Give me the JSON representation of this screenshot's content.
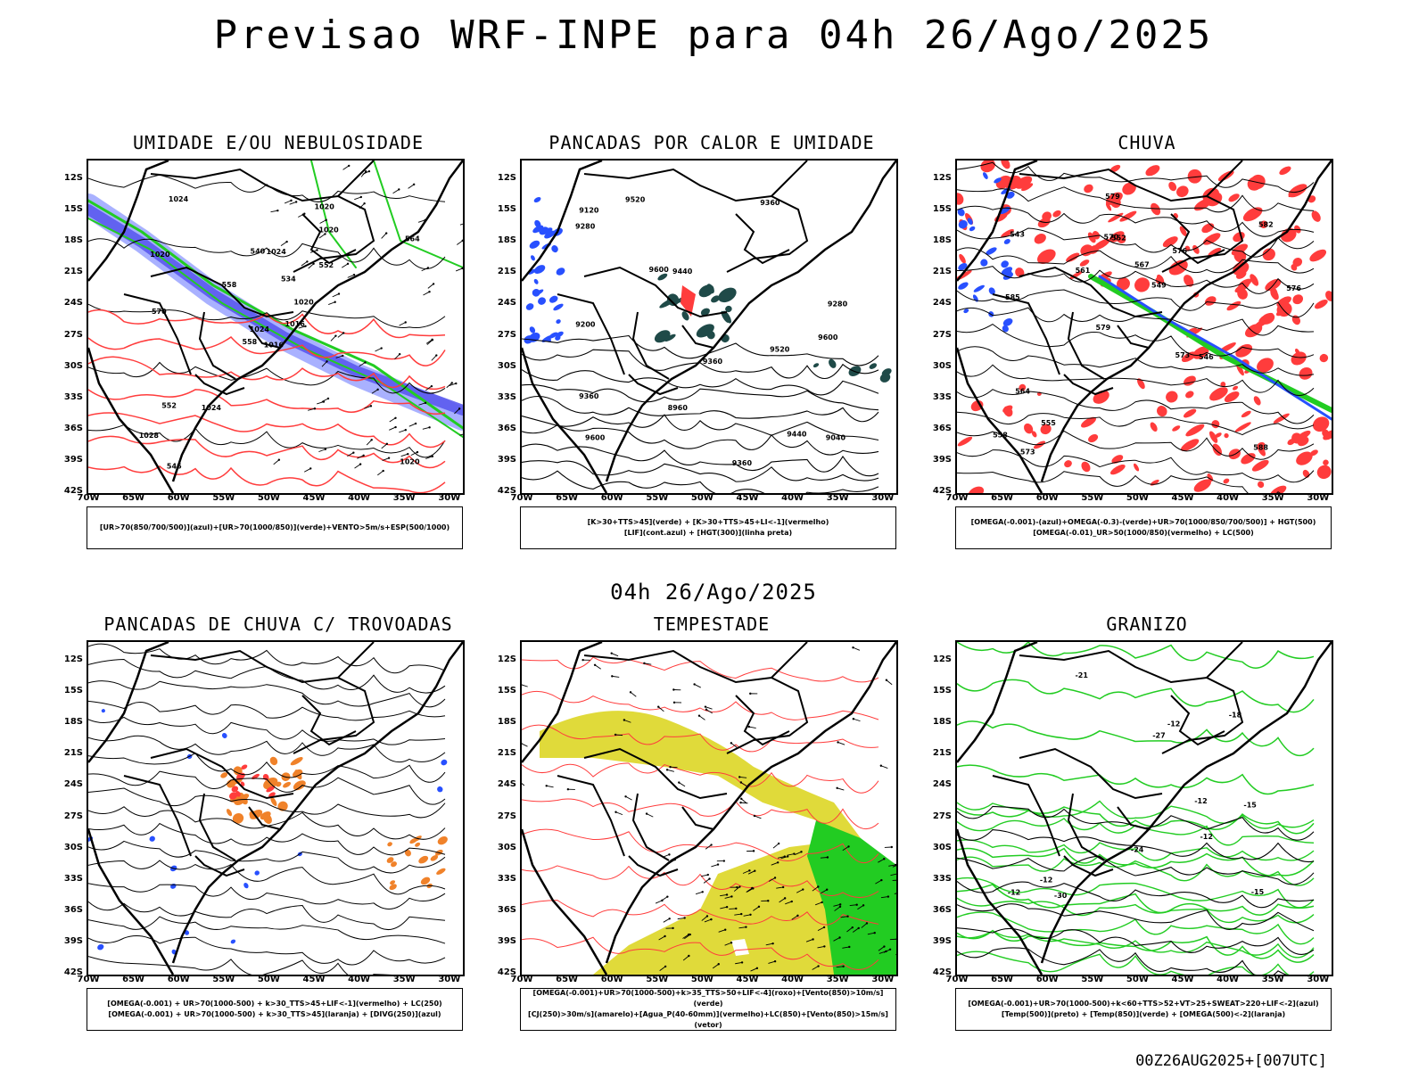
{
  "header": {
    "title": "Previsao WRF-INPE  para 04h 26/Ago/2025",
    "subtitle": "04h 26/Ago/2025",
    "footer_time": "00Z26AUG2025+[007UTC]"
  },
  "axes": {
    "lat": [
      "12S",
      "15S",
      "18S",
      "21S",
      "24S",
      "27S",
      "30S",
      "33S",
      "36S",
      "39S",
      "42S"
    ],
    "lon": [
      "70W",
      "65W",
      "60W",
      "55W",
      "50W",
      "45W",
      "40W",
      "35W",
      "30W"
    ]
  },
  "colors": {
    "green": "#22cc22",
    "red": "#ff3c3c",
    "blue": "#2850ff",
    "light_blue": "#a0a8ff",
    "purple_blue": "#5a5aee",
    "dark_teal": "#1f4a48",
    "yellow": "#e0da3a",
    "orange": "#f0822a"
  },
  "panels": [
    {
      "id": "umidade",
      "title": "UMIDADE E/OU NEBULOSIDADE",
      "legend": [
        "[UR>70(850/700/500)](azul)+[UR>70(1000/850)](verde)+VENTO>5m/s+ESP(500/1000)"
      ],
      "labels": [
        "1016",
        "1020",
        "1024",
        "1028",
        "1020",
        "1024",
        "1020",
        "1024",
        "1020",
        "1016",
        "1024",
        "1020",
        "570",
        "564",
        "558",
        "552",
        "546",
        "540",
        "534",
        "552",
        "558"
      ]
    },
    {
      "id": "pancadas-calor",
      "title": "PANCADAS POR CALOR E UMIDADE",
      "legend": [
        "[K>30+TTS>45](verde)  +  [K>30+TTS>45+LI<-1](vermelho)",
        "[LIF](cont.azul)  +  [HGT(300)](linha preta)"
      ],
      "labels": [
        "9520",
        "9600",
        "9600",
        "9520",
        "9440",
        "9440",
        "9360",
        "9360",
        "9600",
        "9360",
        "9280",
        "9200",
        "9120",
        "9040",
        "8960",
        "9280",
        "9360"
      ]
    },
    {
      "id": "chuva",
      "title": "CHUVA",
      "legend": [
        "[OMEGA(-0.001)-(azul)+OMEGA(-0.3)-(verde)+UR>70(1000/850/700/500)]  +  HGT(500)",
        "[OMEGA(-0.01)_UR>50(1000/850)(vermelho)  +  LC(500)"
      ],
      "labels": [
        "588",
        "585",
        "582",
        "579",
        "576",
        "573",
        "570",
        "567",
        "564",
        "561",
        "558",
        "555",
        "552",
        "549",
        "546",
        "543",
        "579",
        "576",
        "573"
      ]
    },
    {
      "id": "pancadas-trovoadas",
      "title": "PANCADAS DE CHUVA C/ TROVOADAS",
      "legend": [
        "[OMEGA(-0.001)  +  UR>70(1000-500)  +  k>30_TTS>45+LIF<-1](vermelho)  +  LC(250)",
        "[OMEGA(-0.001)  +  UR>70(1000-500)  +  k>30_TTS>45](laranja)  +  [DIVG(250)](azul)"
      ],
      "labels": []
    },
    {
      "id": "tempestade",
      "title": "TEMPESTADE",
      "legend": [
        "[OMEGA(-0.001)+UR>70(1000-500)+k>35_TTS>50+LIF<-4](roxo)+[Vento(850)>10m/s](verde)",
        "[CJ(250)>30m/s](amarelo)+[Agua_P(40-60mm)](vermelho)+LC(850)+[Vento(850)>15m/s](vetor)"
      ],
      "labels": []
    },
    {
      "id": "granizo",
      "title": "GRANIZO",
      "legend": [
        "[OMEGA(-0.001)+UR>70(1000-500)+k<60+TTS>52+VT>25+SWEAT>220+LIF<-2](azul)",
        "[Temp(500)](preto)  +  [Temp(850)](verde)  +  [OMEGA(500)<-2](laranja)"
      ],
      "labels": [
        "-12",
        "-12",
        "-12",
        "-12",
        "-15",
        "-18",
        "-21",
        "-24",
        "-27",
        "-30",
        "-15",
        "-12"
      ]
    }
  ]
}
